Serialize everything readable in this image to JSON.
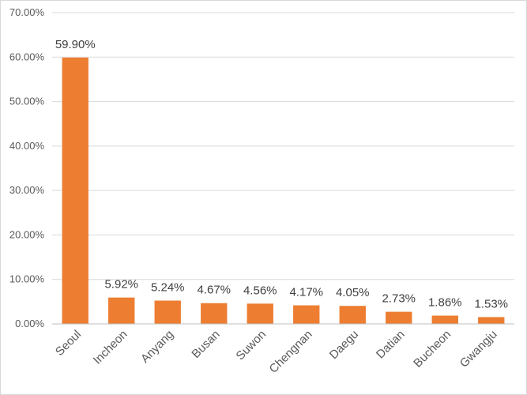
{
  "chart_data": {
    "type": "bar",
    "categories": [
      "Seoul",
      "Incheon",
      "Anyang",
      "Busan",
      "Suwon",
      "Chengnan",
      "Daegu",
      "Datian",
      "Bucheon",
      "Gwangju"
    ],
    "values": [
      59.9,
      5.92,
      5.24,
      4.67,
      4.56,
      4.17,
      4.05,
      2.73,
      1.86,
      1.53
    ],
    "data_labels": [
      "59.90%",
      "5.92%",
      "5.24%",
      "4.67%",
      "4.56%",
      "4.17%",
      "4.05%",
      "2.73%",
      "1.86%",
      "1.53%"
    ],
    "y_ticks": [
      "0.00%",
      "10.00%",
      "20.00%",
      "30.00%",
      "40.00%",
      "50.00%",
      "60.00%",
      "70.00%"
    ],
    "ylim": [
      0,
      70
    ],
    "title": "",
    "xlabel": "",
    "ylabel": "",
    "grid": true,
    "legend": "none",
    "bar_color": "#ED7D31"
  }
}
